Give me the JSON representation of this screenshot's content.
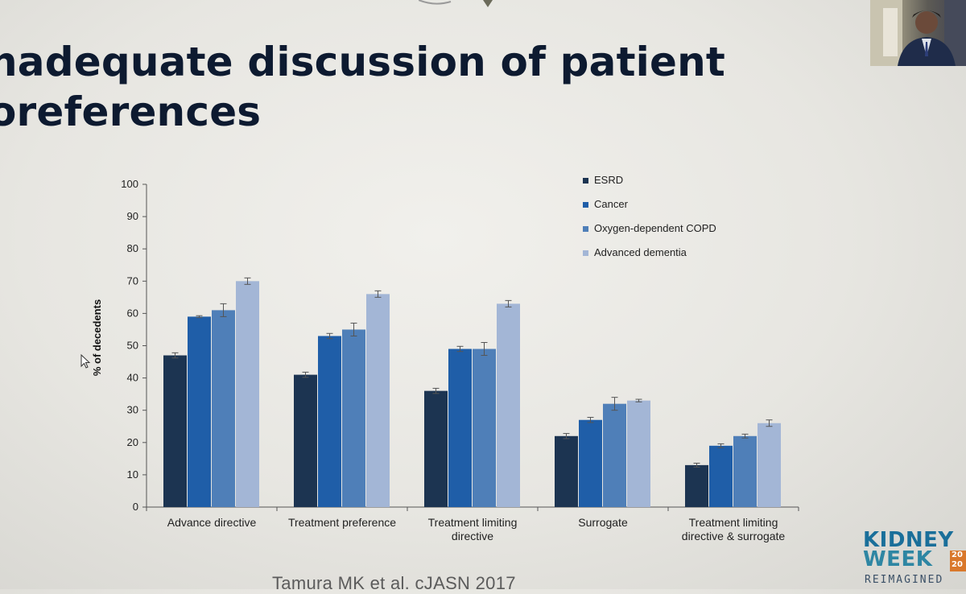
{
  "slide": {
    "title_line1": "nadequate discussion of patient",
    "title_line2": "oreferences",
    "citation": "Tamura MK et al. cJASN 2017",
    "logo": {
      "line1": "KIDNEY",
      "line2": "WEEK",
      "year": "20 20",
      "line3": "REIMAGINED"
    }
  },
  "chart_data": {
    "type": "bar",
    "title": "",
    "ylabel": "% of decedents",
    "xlabel": "",
    "ylim": [
      0,
      100
    ],
    "yticks": [
      0,
      10,
      20,
      30,
      40,
      50,
      60,
      70,
      80,
      90,
      100
    ],
    "legend_position": "top-right",
    "error_bars": true,
    "categories": [
      [
        "Advance directive"
      ],
      [
        "Treatment preference"
      ],
      [
        "Treatment limiting",
        "directive"
      ],
      [
        "Surrogate"
      ],
      [
        "Treatment limiting",
        "directive & surrogate"
      ]
    ],
    "series": [
      {
        "name": "ESRD",
        "color": "#1c3451",
        "values": [
          47,
          41,
          36,
          22,
          13
        ],
        "errors": [
          0.8,
          0.8,
          0.8,
          0.8,
          0.6
        ]
      },
      {
        "name": "Cancer",
        "color": "#1f5ea8",
        "values": [
          59,
          53,
          49,
          27,
          19
        ],
        "errors": [
          0.3,
          0.8,
          0.8,
          0.8,
          0.6
        ]
      },
      {
        "name": "Oxygen-dependent COPD",
        "color": "#4f7fb8",
        "values": [
          61,
          55,
          49,
          32,
          22
        ],
        "errors": [
          2,
          2,
          2,
          2,
          0.6
        ]
      },
      {
        "name": "Advanced dementia",
        "color": "#a3b6d6",
        "values": [
          70,
          66,
          63,
          33,
          26
        ],
        "errors": [
          1,
          1,
          1,
          0.4,
          1
        ]
      }
    ]
  }
}
